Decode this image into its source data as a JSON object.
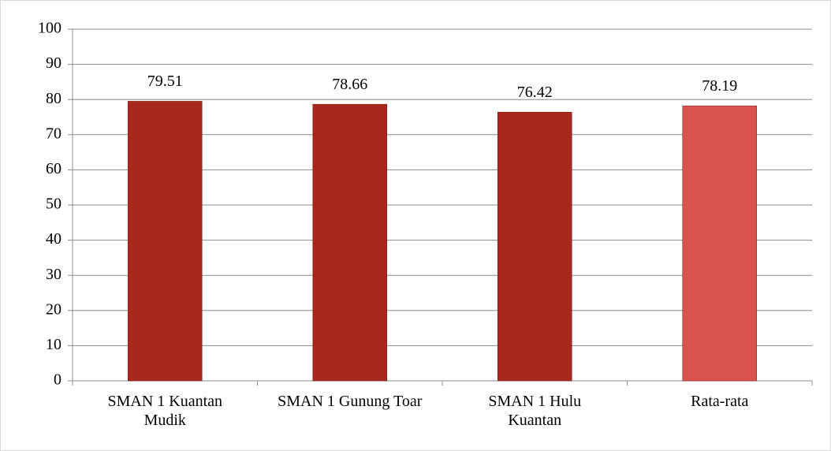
{
  "chart_data": {
    "type": "bar",
    "categories": [
      "SMAN 1 Kuantan Mudik",
      "SMAN 1 Gunung Toar",
      "SMAN 1 Hulu Kuantan",
      "Rata-rata"
    ],
    "values": [
      79.51,
      78.66,
      76.42,
      78.19
    ],
    "colors": [
      "#a8281c",
      "#a8281c",
      "#a8281c",
      "#d9534f"
    ],
    "ylim": [
      0,
      100
    ],
    "yticks": [
      0,
      10,
      20,
      30,
      40,
      50,
      60,
      70,
      80,
      90,
      100
    ],
    "grid": true
  }
}
